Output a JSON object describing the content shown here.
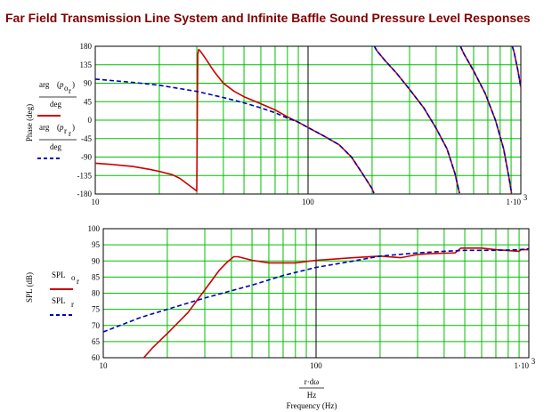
{
  "title": "Far Field Transmission Line System and Infinite Baffle Sound Pressure Level Responses",
  "colors": {
    "title": "#800000",
    "grid": "#00c000",
    "series_red": "#cc0000",
    "series_blue": "#0000bb",
    "major_line": "#000000"
  },
  "chart_data": [
    {
      "type": "line",
      "name": "phase",
      "xscale": "log",
      "xlim": [
        10,
        1000
      ],
      "ylim": [
        -180,
        180
      ],
      "ylabel": "Phase (deg)",
      "yticks": [
        "180",
        "135",
        "90",
        "45",
        "0",
        "-45",
        "-90",
        "-135",
        "-180"
      ],
      "xticks": [
        "10",
        "100",
        "1·10"
      ],
      "xtick_exp": "3",
      "legend": [
        {
          "num_main": "arg",
          "num_sub": "p",
          "num_subsub": "o",
          "num_subsub2": "r",
          "den": "deg"
        },
        {
          "num_main": "arg",
          "num_sub": "p",
          "num_subsub": "r",
          "num_subsub2": "r",
          "den": "deg"
        }
      ],
      "grid": true,
      "series": [
        {
          "style": "solid",
          "segments": [
            [
              [
                10,
                -105
              ],
              [
                12,
                -108
              ],
              [
                15,
                -113
              ],
              [
                18,
                -120
              ],
              [
                20,
                -125
              ],
              [
                23,
                -133
              ],
              [
                25,
                -142
              ],
              [
                27,
                -155
              ],
              [
                29,
                -167
              ],
              [
                30,
                -173
              ],
              [
                30.3,
                160
              ],
              [
                30.6,
                172
              ],
              [
                31,
                170
              ],
              [
                33,
                150
              ],
              [
                36,
                120
              ],
              [
                40,
                90
              ],
              [
                45,
                70
              ],
              [
                50,
                57
              ],
              [
                60,
                40
              ],
              [
                70,
                25
              ],
              [
                80,
                8
              ],
              [
                90,
                -5
              ],
              [
                100,
                -18
              ],
              [
                120,
                -40
              ],
              [
                140,
                -60
              ],
              [
                160,
                -90
              ],
              [
                180,
                -130
              ],
              [
                200,
                -167
              ],
              [
                204,
                -178
              ]
            ],
            [
              [
                205,
                180
              ],
              [
                210,
                170
              ],
              [
                230,
                145
              ],
              [
                260,
                115
              ],
              [
                300,
                75
              ],
              [
                350,
                30
              ],
              [
                400,
                -20
              ],
              [
                450,
                -70
              ],
              [
                490,
                -130
              ],
              [
                515,
                -178
              ]
            ],
            [
              [
                520,
                180
              ],
              [
                540,
                162
              ],
              [
                600,
                120
              ],
              [
                680,
                65
              ],
              [
                760,
                0
              ],
              [
                830,
                -70
              ],
              [
                880,
                -140
              ],
              [
                905,
                -178
              ]
            ],
            [
              [
                912,
                180
              ],
              [
                930,
                165
              ],
              [
                970,
                120
              ],
              [
                1000,
                80
              ]
            ]
          ]
        },
        {
          "style": "dashed",
          "segments": [
            [
              [
                10,
                100
              ],
              [
                15,
                92
              ],
              [
                20,
                85
              ],
              [
                30,
                70
              ],
              [
                40,
                55
              ],
              [
                50,
                42
              ],
              [
                60,
                30
              ],
              [
                70,
                18
              ],
              [
                80,
                5
              ],
              [
                90,
                -5
              ],
              [
                100,
                -18
              ],
              [
                120,
                -40
              ],
              [
                140,
                -60
              ],
              [
                160,
                -90
              ],
              [
                180,
                -130
              ],
              [
                200,
                -167
              ],
              [
                204,
                -178
              ]
            ],
            [
              [
                205,
                180
              ],
              [
                210,
                170
              ],
              [
                230,
                145
              ],
              [
                260,
                115
              ],
              [
                300,
                75
              ],
              [
                350,
                30
              ],
              [
                400,
                -20
              ],
              [
                450,
                -70
              ],
              [
                490,
                -130
              ],
              [
                515,
                -178
              ]
            ],
            [
              [
                520,
                180
              ],
              [
                540,
                162
              ],
              [
                600,
                120
              ],
              [
                680,
                65
              ],
              [
                760,
                0
              ],
              [
                830,
                -70
              ],
              [
                880,
                -140
              ],
              [
                905,
                -178
              ]
            ],
            [
              [
                912,
                180
              ],
              [
                930,
                165
              ],
              [
                970,
                120
              ],
              [
                1000,
                80
              ]
            ]
          ]
        }
      ]
    },
    {
      "type": "line",
      "name": "spl",
      "xscale": "log",
      "xlim": [
        10,
        1000
      ],
      "ylim": [
        60,
        100
      ],
      "ylabel": "SPL (dB)",
      "yticks": [
        "100",
        "95",
        "90",
        "85",
        "80",
        "75",
        "70",
        "65",
        "60"
      ],
      "xticks": [
        "10",
        "100",
        "1·10"
      ],
      "xtick_exp": "3",
      "xlabel_num": "r·dω",
      "xlabel_den": "Hz",
      "xlabel": "Frequency (Hz)",
      "legend": [
        {
          "main": "SPL",
          "sub": "o",
          "subsub": "r"
        },
        {
          "main": "SPL",
          "sub": "r",
          "subsub": ""
        }
      ],
      "grid": true,
      "series": [
        {
          "style": "solid",
          "points": [
            [
              15.5,
              60
            ],
            [
              17,
              63
            ],
            [
              20,
              67.5
            ],
            [
              25,
              74
            ],
            [
              30,
              81
            ],
            [
              35,
              87
            ],
            [
              38,
              89.5
            ],
            [
              41,
              91.3
            ],
            [
              43,
              91.3
            ],
            [
              50,
              90.2
            ],
            [
              60,
              89.4
            ],
            [
              80,
              89.4
            ],
            [
              100,
              90.2
            ],
            [
              150,
              91
            ],
            [
              200,
              91.5
            ],
            [
              250,
              91
            ],
            [
              300,
              92
            ],
            [
              350,
              92.3
            ],
            [
              450,
              92.5
            ],
            [
              480,
              94
            ],
            [
              600,
              94
            ],
            [
              700,
              93.5
            ],
            [
              900,
              93
            ],
            [
              920,
              93.5
            ],
            [
              1000,
              93.5
            ]
          ]
        },
        {
          "style": "dashed",
          "points": [
            [
              10,
              68
            ],
            [
              15,
              72.5
            ],
            [
              20,
              75
            ],
            [
              30,
              78.5
            ],
            [
              50,
              82.5
            ],
            [
              70,
              85.5
            ],
            [
              100,
              88
            ],
            [
              150,
              90
            ],
            [
              200,
              91.5
            ],
            [
              300,
              92.5
            ],
            [
              400,
              93
            ],
            [
              500,
              93.3
            ],
            [
              700,
              93.3
            ],
            [
              900,
              93.5
            ],
            [
              1000,
              93.8
            ]
          ]
        }
      ]
    }
  ]
}
